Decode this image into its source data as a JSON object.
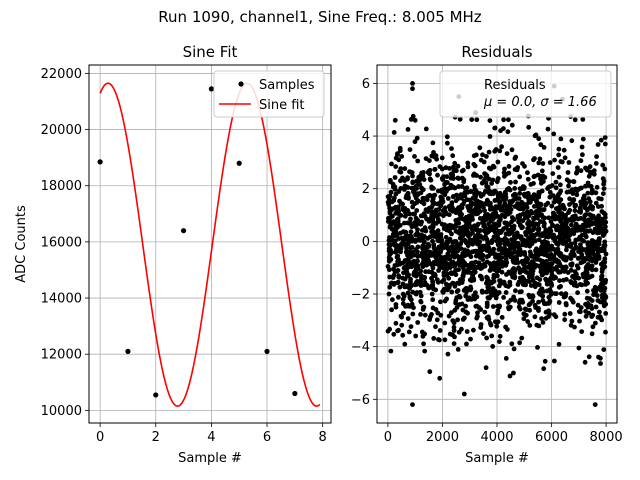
{
  "figure": {
    "suptitle": "Run 1090, channel1, Sine Freq.: 8.005 MHz"
  },
  "chart_data": [
    {
      "type": "line",
      "title": "Sine Fit",
      "xlabel": "Sample #",
      "ylabel": "ADC Counts",
      "xlim": [
        -0.4,
        8.3
      ],
      "ylim": [
        9550,
        22300
      ],
      "xticks": [
        0,
        2,
        4,
        6,
        8
      ],
      "yticks": [
        10000,
        12000,
        14000,
        16000,
        18000,
        20000,
        22000
      ],
      "grid": true,
      "legend_position": "top-right",
      "samples": {
        "name": "Samples",
        "color": "#000000",
        "x": [
          0,
          1,
          2,
          3,
          4,
          5,
          6,
          7
        ],
        "y": [
          18850,
          12100,
          10550,
          16400,
          21450,
          18800,
          12100,
          10600
        ]
      },
      "fit": {
        "name": "Sine fit",
        "color": "#ff0000",
        "amplitude": 5750,
        "offset": 15900,
        "period": 5.0,
        "phase": 1.215,
        "x_range": [
          0,
          7.9
        ]
      }
    },
    {
      "type": "scatter",
      "title": "Residuals",
      "xlabel": "Sample #",
      "ylabel": "",
      "xlim": [
        -400,
        8400
      ],
      "ylim": [
        -6.9,
        6.7
      ],
      "xticks": [
        0,
        2000,
        4000,
        6000,
        8000
      ],
      "yticks": [
        -6,
        -4,
        -2,
        0,
        2,
        4,
        6
      ],
      "grid": true,
      "legend_position": "top-right",
      "series": {
        "name": "Residuals",
        "color": "#000000",
        "n_points": 8000,
        "mean": 0.0,
        "sigma": 1.66,
        "stat_label": "μ = 0.0, σ = 1.66",
        "outliers": [
          {
            "x": 900,
            "y": 6.0
          },
          {
            "x": 900,
            "y": 5.8
          },
          {
            "x": 1000,
            "y": 4.6
          },
          {
            "x": 2600,
            "y": 5.5
          },
          {
            "x": 6100,
            "y": 5.9
          },
          {
            "x": 6400,
            "y": 5.4
          },
          {
            "x": 900,
            "y": -6.2
          },
          {
            "x": 7600,
            "y": -6.2
          },
          {
            "x": 2800,
            "y": -5.8
          },
          {
            "x": 1900,
            "y": -5.2
          },
          {
            "x": 4600,
            "y": -5.0
          },
          {
            "x": 3600,
            "y": -4.8
          }
        ]
      }
    }
  ]
}
